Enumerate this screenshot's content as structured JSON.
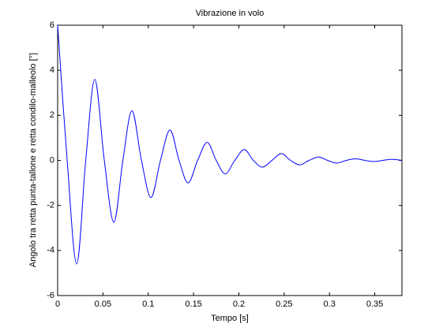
{
  "chart_data": {
    "type": "line",
    "title": "Vibrazione in volo",
    "x_label": "Tempo [s]",
    "y_label": "Angolo tra retta punta-tallone e retta condilo-malleolo [°]",
    "x": [
      0,
      0.0105,
      0.021,
      0.031,
      0.041,
      0.0515,
      0.062,
      0.072,
      0.082,
      0.0925,
      0.103,
      0.1135,
      0.124,
      0.134,
      0.144,
      0.1545,
      0.165,
      0.175,
      0.185,
      0.1955,
      0.206,
      0.216,
      0.226,
      0.2365,
      0.247,
      0.257,
      0.267,
      0.2775,
      0.288,
      0.298,
      0.308,
      0.3185,
      0.329,
      0.339,
      0.349,
      0.359,
      0.369,
      0.38
    ],
    "series": [
      {
        "color": "#0000ff",
        "values": [
          6,
          0,
          -4.6,
          0,
          3.6,
          0,
          -2.75,
          0,
          2.2,
          0,
          -1.65,
          0,
          1.35,
          0,
          -1.0,
          0,
          0.8,
          0,
          -0.6,
          0,
          0.48,
          0,
          -0.3,
          0,
          0.3,
          0,
          -0.2,
          0,
          0.15,
          0,
          -0.12,
          0,
          0.07,
          0,
          -0.05,
          0,
          0.05,
          0
        ]
      }
    ],
    "xlim": [
      0,
      0.38
    ],
    "ylim": [
      -6,
      6
    ],
    "xticks": [
      0,
      0.05,
      0.1,
      0.15,
      0.2,
      0.25,
      0.3,
      0.35
    ],
    "yticks": [
      -6,
      -4,
      -2,
      0,
      2,
      4,
      6
    ]
  }
}
